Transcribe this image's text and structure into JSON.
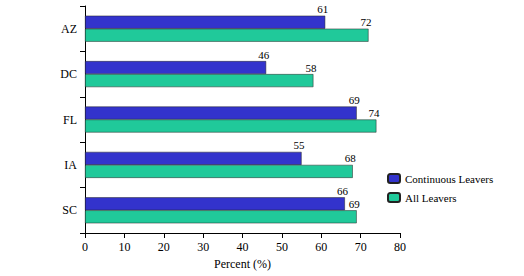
{
  "chart_data": {
    "type": "bar",
    "orientation": "horizontal",
    "categories": [
      "AZ",
      "DC",
      "FL",
      "IA",
      "SC"
    ],
    "series": [
      {
        "name": "Continuous Leavers",
        "color": "#3333cc",
        "values": [
          61,
          46,
          69,
          55,
          66
        ]
      },
      {
        "name": "All Leavers",
        "color": "#20c99a",
        "values": [
          72,
          58,
          74,
          68,
          69
        ]
      }
    ],
    "xlabel": "Percent (%)",
    "xlim": [
      0,
      80
    ],
    "xticks": [
      0,
      10,
      20,
      30,
      40,
      50,
      60,
      70,
      80
    ],
    "data_labels": true,
    "legend": "right",
    "grid": false
  }
}
